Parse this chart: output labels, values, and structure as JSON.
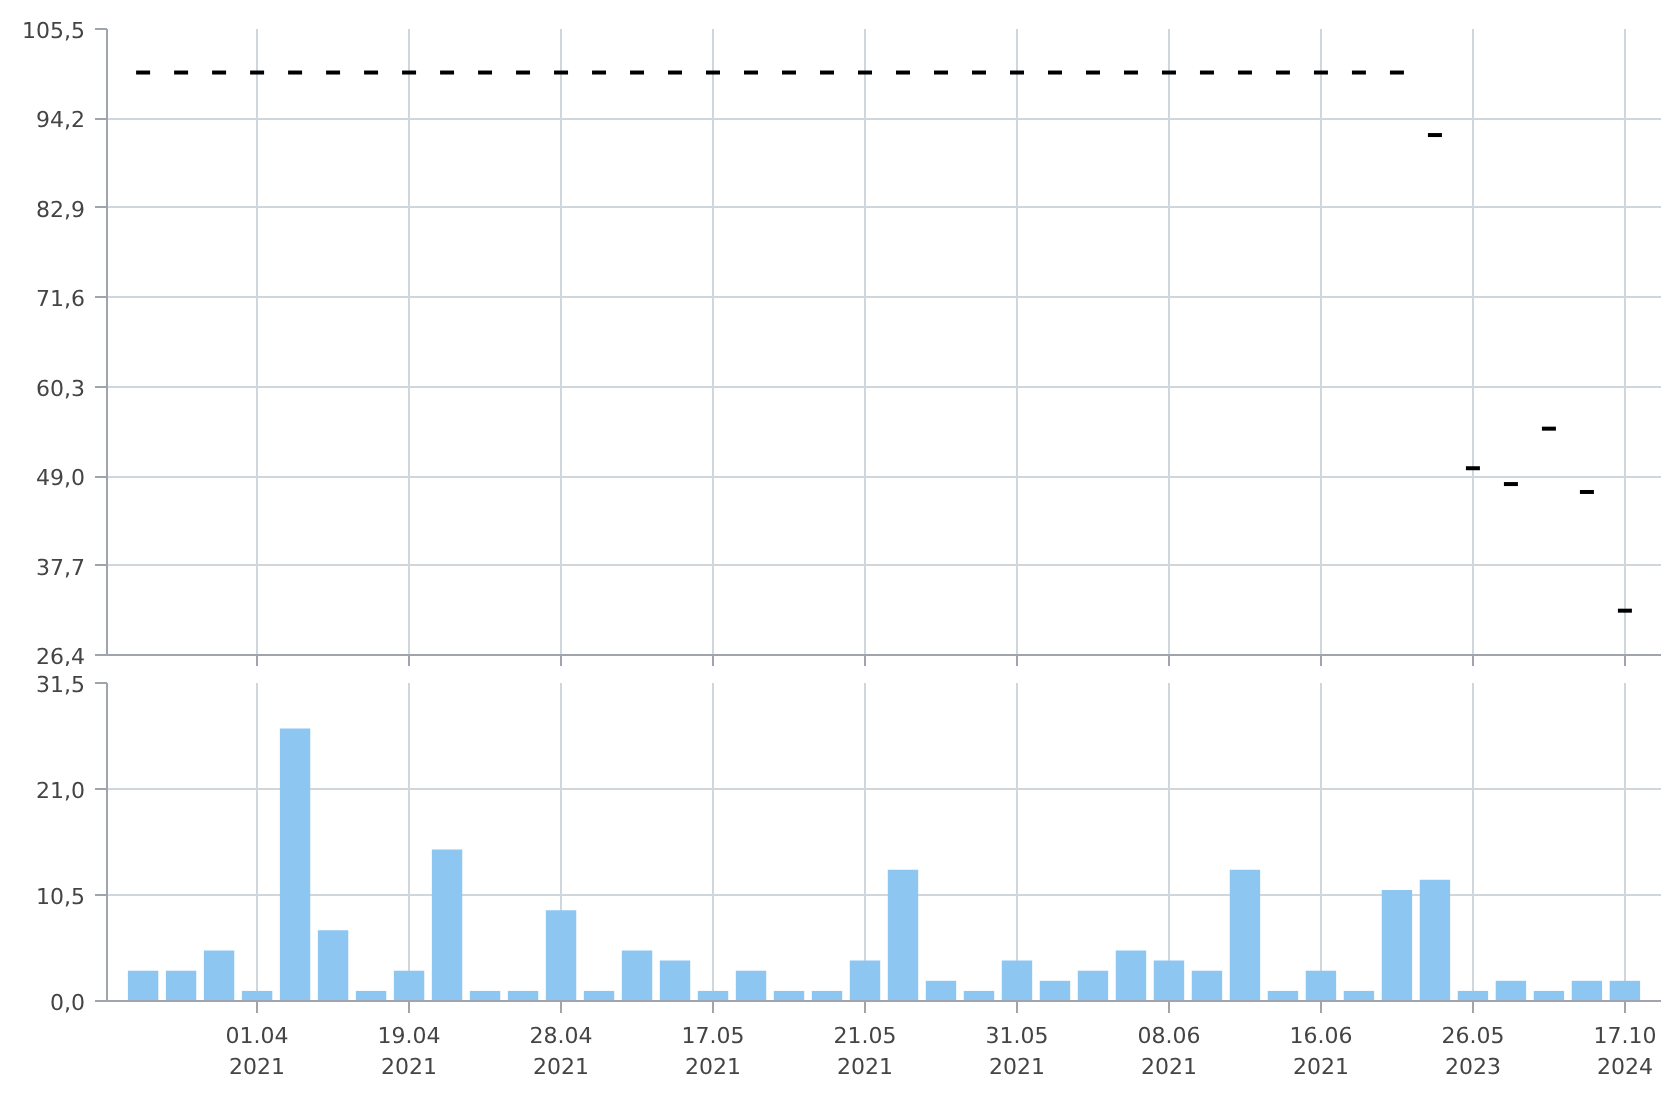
{
  "chart_data": [
    {
      "type": "candlestick",
      "categories": [
        null,
        null,
        null,
        null,
        null,
        null,
        null,
        null,
        null,
        null,
        null,
        null,
        null,
        null,
        null,
        null,
        null,
        null,
        null,
        null,
        null,
        null,
        null,
        null,
        null,
        null,
        null,
        null,
        null,
        null,
        null,
        null,
        null,
        null,
        null,
        null,
        null,
        null,
        null,
        null
      ],
      "ohlc": [
        [
          100,
          100,
          100,
          100
        ],
        [
          100,
          100,
          100,
          100
        ],
        [
          100,
          100,
          100,
          100
        ],
        [
          100,
          100,
          100,
          100
        ],
        [
          100,
          100,
          100,
          100
        ],
        [
          100,
          100,
          100,
          100
        ],
        [
          100,
          100,
          100,
          100
        ],
        [
          100,
          100,
          100,
          100
        ],
        [
          100,
          100,
          100,
          100
        ],
        [
          100,
          100,
          100,
          100
        ],
        [
          100,
          100,
          100,
          100
        ],
        [
          100,
          100,
          100,
          100
        ],
        [
          100,
          100,
          100,
          100
        ],
        [
          100,
          100,
          100,
          100
        ],
        [
          100,
          100,
          100,
          100
        ],
        [
          100,
          100,
          100,
          100
        ],
        [
          100,
          100,
          100,
          100
        ],
        [
          100,
          100,
          100,
          100
        ],
        [
          100,
          100,
          100,
          100
        ],
        [
          100,
          100,
          100,
          100
        ],
        [
          100,
          100,
          100,
          100
        ],
        [
          100,
          100,
          100,
          100
        ],
        [
          100,
          100,
          100,
          100
        ],
        [
          100,
          100,
          100,
          100
        ],
        [
          100,
          100,
          100,
          100
        ],
        [
          100,
          100,
          100,
          100
        ],
        [
          100,
          100,
          100,
          100
        ],
        [
          100,
          100,
          100,
          100
        ],
        [
          100,
          100,
          100,
          100
        ],
        [
          100,
          100,
          100,
          100
        ],
        [
          100,
          100,
          100,
          100
        ],
        [
          100,
          100,
          100,
          100
        ],
        [
          100,
          100,
          100,
          100
        ],
        [
          100,
          100,
          100,
          100
        ],
        [
          92.1,
          92.1,
          92.1,
          92.1
        ],
        [
          50.0,
          50.0,
          50.0,
          50.0
        ],
        [
          48.0,
          48.0,
          48.0,
          48.0
        ],
        [
          55.0,
          55.0,
          55.0,
          55.0
        ],
        [
          47.0,
          47.0,
          47.0,
          47.0
        ],
        [
          32.0,
          32.0,
          32.0,
          32.0
        ]
      ],
      "color": "#000000",
      "ylim": [
        26.4,
        105.5
      ],
      "yticks": [
        {
          "value": 26.4,
          "label": "26,4"
        },
        {
          "value": 37.7,
          "label": "37,7"
        },
        {
          "value": 49.0,
          "label": "49,0"
        },
        {
          "value": 60.3,
          "label": "60,3"
        },
        {
          "value": 71.6,
          "label": "71,6"
        },
        {
          "value": 82.9,
          "label": "82,9"
        },
        {
          "value": 94.2,
          "label": "94,2"
        },
        {
          "value": 105.5,
          "label": "105,5"
        }
      ],
      "grid": true,
      "tick_labels": "y"
    },
    {
      "type": "bar",
      "categories": [
        null,
        null,
        null,
        "01.04\n2021",
        null,
        null,
        null,
        "19.04\n2021",
        null,
        null,
        null,
        "28.04\n2021",
        null,
        null,
        null,
        "17.05\n2021",
        null,
        null,
        null,
        "21.05\n2021",
        null,
        null,
        null,
        "31.05\n2021",
        null,
        null,
        null,
        "08.06\n2021",
        null,
        null,
        null,
        "16.06\n2021",
        null,
        null,
        null,
        "26.05\n2023",
        null,
        null,
        null,
        "17.10\n2024"
      ],
      "series": [
        {
          "color": "#8ec6f2",
          "values": [
            3,
            3,
            5,
            1,
            27,
            7,
            1,
            3,
            15,
            1,
            1,
            9,
            1,
            5,
            4,
            1,
            3,
            1,
            1,
            4,
            13,
            2,
            1,
            4,
            2,
            3,
            5,
            4,
            3,
            13,
            1,
            3,
            1,
            11,
            12,
            1,
            2,
            1,
            2,
            2
          ]
        }
      ],
      "ylim": [
        0,
        31.5
      ],
      "yticks": [
        {
          "value": 0,
          "label": "0,0"
        },
        {
          "value": 10.5,
          "label": "10,5"
        },
        {
          "value": 21.0,
          "label": "21,0"
        },
        {
          "value": 31.5,
          "label": "31,5"
        }
      ],
      "grid": true
    }
  ]
}
